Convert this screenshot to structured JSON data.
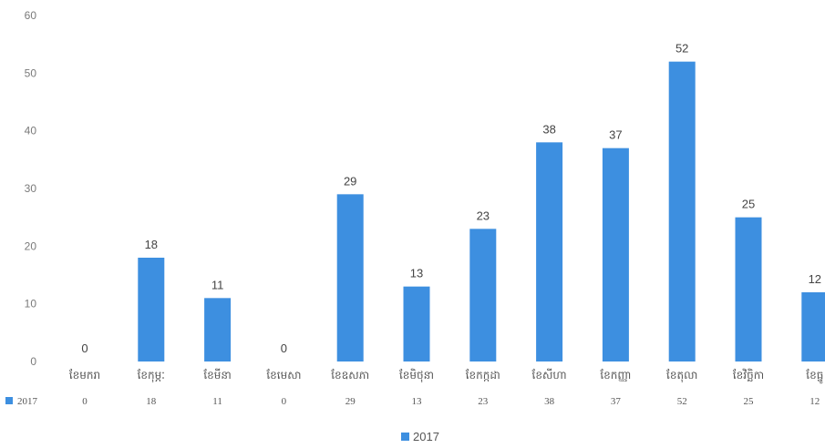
{
  "chart_data": {
    "type": "bar",
    "title": "",
    "xlabel": "",
    "ylabel": "",
    "categories": [
      "ខែមករា",
      "ខែកុម្ភៈ",
      "ខែមីនា",
      "ខែមេសា",
      "ខែឧសភា",
      "ខែមិថុនា",
      "ខែកក្កដា",
      "ខែសីហា",
      "ខែកញ្ញា",
      "ខែតុលា",
      "ខែវិច្ឆិកា",
      "ខែធ្នូ"
    ],
    "series": [
      {
        "name": "2017",
        "values": [
          0,
          18,
          11,
          0,
          29,
          13,
          23,
          38,
          37,
          52,
          25,
          12
        ]
      }
    ],
    "ylim": [
      0,
      60
    ],
    "yticks": [
      0,
      10,
      20,
      30,
      40,
      50,
      60
    ],
    "grid": false,
    "data_table": true,
    "legend_position": "bottom",
    "colors": {
      "bar": "#3d8fe0",
      "legend_key": "#3d8fe0"
    }
  }
}
